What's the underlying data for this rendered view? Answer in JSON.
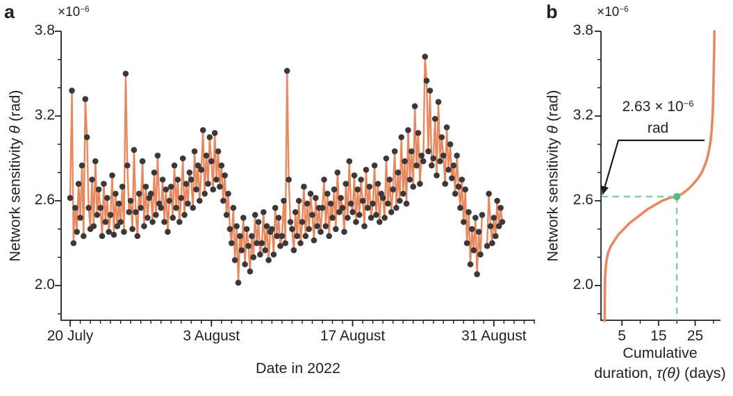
{
  "panels": {
    "a": {
      "letter": "a",
      "y_axis": {
        "label_pre": "Network sensitivity ",
        "label_math": "θ",
        "label_post": " (rad)",
        "scale_base": "×10",
        "scale_exp": "−6",
        "major_ticks": [
          "2.0",
          "2.6",
          "3.2",
          "3.8"
        ],
        "minor_ticks": [
          1.8,
          2.2,
          2.4,
          2.8,
          3.0,
          3.4,
          3.6
        ]
      },
      "x_axis": {
        "label": "Date in 2022",
        "major_ticks": [
          {
            "day": 0,
            "label": "20 July"
          },
          {
            "day": 14,
            "label": "3 August"
          },
          {
            "day": 28,
            "label": "17 August"
          },
          {
            "day": 42,
            "label": "31 August"
          }
        ],
        "minor_tick_step_days": 1,
        "minor_tick_last_day": 46
      }
    },
    "b": {
      "letter": "b",
      "y_axis": {
        "label_pre": "Network sensitivity ",
        "label_math": "θ",
        "label_post": " (rad)",
        "scale_base": "×10",
        "scale_exp": "−6",
        "major_ticks": [
          "2.0",
          "2.6",
          "3.2",
          "3.8"
        ],
        "minor_ticks": [
          1.8,
          2.2,
          2.4,
          2.8,
          3.0,
          3.4,
          3.6
        ]
      },
      "x_axis": {
        "label_line1": "Cumulative",
        "label_line2_pre": "duration, ",
        "label_line2_math": "τ(θ)",
        "label_line2_post": " (days)",
        "major_ticks": [
          {
            "x": 5,
            "label": "5"
          },
          {
            "x": 15,
            "label": "15"
          },
          {
            "x": 25,
            "label": "25"
          }
        ],
        "minor_ticks": [
          10,
          20,
          30
        ]
      },
      "annotation": {
        "value_base": "2.63 × 10",
        "value_exp": "−6",
        "unit": "rad"
      }
    }
  },
  "chart_data": [
    {
      "panel": "a",
      "type": "scatter",
      "connected": true,
      "xlabel": "Date in 2022",
      "ylabel": "Network sensitivity θ (rad)",
      "x_unit": "days since 20 July 2022",
      "y_unit": "1e-6 rad",
      "x_range": [
        -0.9,
        46.2
      ],
      "y_range": [
        1.75,
        3.8
      ],
      "x_major_tick_labels": [
        "20 July",
        "3 August",
        "17 August",
        "31 August"
      ],
      "y_major_tick_labels": [
        "2.0",
        "2.6",
        "3.2",
        "3.8"
      ],
      "points": [
        [
          0,
          2.62
        ],
        [
          0.17,
          3.38
        ],
        [
          0.33,
          2.3
        ],
        [
          0.5,
          2.55
        ],
        [
          0.67,
          2.38
        ],
        [
          0.83,
          2.72
        ],
        [
          1,
          2.48
        ],
        [
          1.17,
          2.85
        ],
        [
          1.33,
          2.35
        ],
        [
          1.5,
          3.32
        ],
        [
          1.67,
          3.05
        ],
        [
          1.83,
          2.55
        ],
        [
          2,
          2.4
        ],
        [
          2.17,
          2.75
        ],
        [
          2.33,
          2.42
        ],
        [
          2.5,
          2.88
        ],
        [
          2.67,
          2.5
        ],
        [
          2.83,
          2.68
        ],
        [
          3,
          2.55
        ],
        [
          3.17,
          2.35
        ],
        [
          3.33,
          2.72
        ],
        [
          3.5,
          2.45
        ],
        [
          3.67,
          2.62
        ],
        [
          3.83,
          2.38
        ],
        [
          4,
          2.5
        ],
        [
          4.17,
          2.78
        ],
        [
          4.33,
          2.36
        ],
        [
          4.5,
          2.65
        ],
        [
          4.67,
          2.42
        ],
        [
          4.83,
          2.58
        ],
        [
          5,
          2.45
        ],
        [
          5.17,
          2.7
        ],
        [
          5.33,
          2.38
        ],
        [
          5.5,
          3.5
        ],
        [
          5.67,
          2.85
        ],
        [
          5.83,
          2.52
        ],
        [
          6,
          2.6
        ],
        [
          6.17,
          2.4
        ],
        [
          6.33,
          2.96
        ],
        [
          6.5,
          2.52
        ],
        [
          6.67,
          2.35
        ],
        [
          6.83,
          2.65
        ],
        [
          7,
          2.55
        ],
        [
          7.17,
          2.88
        ],
        [
          7.33,
          2.42
        ],
        [
          7.5,
          2.7
        ],
        [
          7.67,
          2.48
        ],
        [
          7.83,
          2.62
        ],
        [
          8,
          2.65
        ],
        [
          8.17,
          2.45
        ],
        [
          8.33,
          2.8
        ],
        [
          8.5,
          2.5
        ],
        [
          8.67,
          2.92
        ],
        [
          8.83,
          2.58
        ],
        [
          9,
          2.55
        ],
        [
          9.17,
          2.75
        ],
        [
          9.33,
          2.45
        ],
        [
          9.5,
          2.68
        ],
        [
          9.67,
          2.38
        ],
        [
          9.83,
          2.6
        ],
        [
          10,
          2.7
        ],
        [
          10.17,
          2.48
        ],
        [
          10.33,
          2.85
        ],
        [
          10.5,
          2.55
        ],
        [
          10.67,
          2.75
        ],
        [
          10.83,
          2.45
        ],
        [
          11,
          2.62
        ],
        [
          11.17,
          2.9
        ],
        [
          11.33,
          2.5
        ],
        [
          11.5,
          2.72
        ],
        [
          11.67,
          2.58
        ],
        [
          11.83,
          2.8
        ],
        [
          12,
          2.75
        ],
        [
          12.17,
          2.55
        ],
        [
          12.33,
          2.95
        ],
        [
          12.5,
          2.68
        ],
        [
          12.67,
          2.85
        ],
        [
          12.83,
          2.6
        ],
        [
          13,
          2.82
        ],
        [
          13.17,
          3.1
        ],
        [
          13.33,
          2.65
        ],
        [
          13.5,
          2.92
        ],
        [
          13.67,
          2.72
        ],
        [
          13.83,
          3.05
        ],
        [
          14,
          2.88
        ],
        [
          14.17,
          2.68
        ],
        [
          14.33,
          3.08
        ],
        [
          14.5,
          2.75
        ],
        [
          14.67,
          2.95
        ],
        [
          14.83,
          2.7
        ],
        [
          15,
          2.85
        ],
        [
          15.17,
          2.6
        ],
        [
          15.33,
          2.78
        ],
        [
          15.5,
          2.5
        ],
        [
          15.67,
          2.65
        ],
        [
          15.83,
          2.4
        ],
        [
          16,
          2.3
        ],
        [
          16.17,
          2.55
        ],
        [
          16.33,
          2.18
        ],
        [
          16.5,
          2.42
        ],
        [
          16.67,
          2.02
        ],
        [
          16.83,
          2.35
        ],
        [
          17,
          2.25
        ],
        [
          17.17,
          2.48
        ],
        [
          17.33,
          2.15
        ],
        [
          17.5,
          2.4
        ],
        [
          17.67,
          2.28
        ],
        [
          17.83,
          2.1
        ],
        [
          18,
          2.35
        ],
        [
          18.17,
          2.2
        ],
        [
          18.33,
          2.5
        ],
        [
          18.5,
          2.3
        ],
        [
          18.67,
          2.45
        ],
        [
          18.83,
          2.22
        ],
        [
          19,
          2.3
        ],
        [
          19.17,
          2.52
        ],
        [
          19.33,
          2.25
        ],
        [
          19.5,
          2.42
        ],
        [
          19.67,
          2.18
        ],
        [
          19.83,
          2.38
        ],
        [
          20,
          2.4
        ],
        [
          20.17,
          2.22
        ],
        [
          20.33,
          2.55
        ],
        [
          20.5,
          2.35
        ],
        [
          20.67,
          2.48
        ],
        [
          20.83,
          2.28
        ],
        [
          21,
          2.35
        ],
        [
          21.17,
          2.6
        ],
        [
          21.33,
          2.3
        ],
        [
          21.5,
          3.52
        ],
        [
          21.67,
          2.75
        ],
        [
          21.83,
          2.45
        ],
        [
          22,
          2.4
        ],
        [
          22.17,
          2.25
        ],
        [
          22.33,
          2.52
        ],
        [
          22.5,
          2.35
        ],
        [
          22.67,
          2.6
        ],
        [
          22.83,
          2.3
        ],
        [
          23,
          2.45
        ],
        [
          23.17,
          2.7
        ],
        [
          23.33,
          2.35
        ],
        [
          23.5,
          2.58
        ],
        [
          23.67,
          2.4
        ],
        [
          23.83,
          2.65
        ],
        [
          24,
          2.5
        ],
        [
          24.17,
          2.32
        ],
        [
          24.33,
          2.62
        ],
        [
          24.5,
          2.42
        ],
        [
          24.67,
          2.55
        ],
        [
          24.83,
          2.38
        ],
        [
          25,
          2.55
        ],
        [
          25.17,
          2.75
        ],
        [
          25.33,
          2.42
        ],
        [
          25.5,
          2.65
        ],
        [
          25.67,
          2.35
        ],
        [
          25.83,
          2.58
        ],
        [
          26,
          2.48
        ],
        [
          26.17,
          2.68
        ],
        [
          26.33,
          2.4
        ],
        [
          26.5,
          2.8
        ],
        [
          26.67,
          2.52
        ],
        [
          26.83,
          2.62
        ],
        [
          27,
          2.55
        ],
        [
          27.17,
          2.38
        ],
        [
          27.33,
          2.72
        ],
        [
          27.5,
          2.48
        ],
        [
          27.67,
          2.88
        ],
        [
          27.83,
          2.58
        ],
        [
          28,
          2.52
        ],
        [
          28.17,
          2.78
        ],
        [
          28.33,
          2.45
        ],
        [
          28.5,
          2.68
        ],
        [
          28.67,
          2.5
        ],
        [
          28.83,
          2.75
        ],
        [
          29,
          2.6
        ],
        [
          29.17,
          2.42
        ],
        [
          29.33,
          2.82
        ],
        [
          29.5,
          2.55
        ],
        [
          29.67,
          2.7
        ],
        [
          29.83,
          2.48
        ],
        [
          30,
          2.58
        ],
        [
          30.17,
          2.85
        ],
        [
          30.33,
          2.5
        ],
        [
          30.5,
          2.72
        ],
        [
          30.67,
          2.45
        ],
        [
          30.83,
          2.65
        ],
        [
          31,
          2.62
        ],
        [
          31.17,
          2.48
        ],
        [
          31.33,
          2.9
        ],
        [
          31.5,
          2.58
        ],
        [
          31.67,
          2.75
        ],
        [
          31.83,
          2.52
        ],
        [
          32,
          2.68
        ],
        [
          32.17,
          2.95
        ],
        [
          32.33,
          2.55
        ],
        [
          32.5,
          2.8
        ],
        [
          32.67,
          2.6
        ],
        [
          32.83,
          3.05
        ],
        [
          33,
          2.65
        ],
        [
          33.17,
          2.88
        ],
        [
          33.33,
          2.58
        ],
        [
          33.5,
          3.1
        ],
        [
          33.67,
          2.75
        ],
        [
          33.83,
          2.95
        ],
        [
          34,
          2.7
        ],
        [
          34.17,
          3.27
        ],
        [
          34.33,
          2.85
        ],
        [
          34.5,
          3.08
        ],
        [
          34.67,
          2.72
        ],
        [
          34.83,
          2.92
        ],
        [
          35,
          2.88
        ],
        [
          35.17,
          3.62
        ],
        [
          35.33,
          3.45
        ],
        [
          35.5,
          2.95
        ],
        [
          35.67,
          3.38
        ],
        [
          35.83,
          2.85
        ],
        [
          36,
          2.9
        ],
        [
          36.17,
          3.18
        ],
        [
          36.33,
          2.78
        ],
        [
          36.5,
          3.3
        ],
        [
          36.67,
          2.88
        ],
        [
          36.83,
          3.05
        ],
        [
          37,
          2.92
        ],
        [
          37.17,
          2.72
        ],
        [
          37.33,
          3.12
        ],
        [
          37.5,
          2.82
        ],
        [
          37.67,
          3
        ],
        [
          37.83,
          2.76
        ],
        [
          38,
          2.85
        ],
        [
          38.17,
          2.65
        ],
        [
          38.33,
          2.92
        ],
        [
          38.5,
          2.7
        ],
        [
          38.67,
          2.55
        ],
        [
          38.83,
          2.75
        ],
        [
          39,
          2.45
        ],
        [
          39.17,
          2.68
        ],
        [
          39.33,
          2.3
        ],
        [
          39.5,
          2.52
        ],
        [
          39.67,
          2.15
        ],
        [
          39.83,
          2.4
        ],
        [
          40,
          2.25
        ],
        [
          40.17,
          2.48
        ],
        [
          40.33,
          2.08
        ],
        [
          40.5,
          2.38
        ],
        [
          40.67,
          2.22
        ],
        [
          40.83,
          2.5
        ],
        [
          41.33,
          2.28
        ],
        [
          41.5,
          2.65
        ],
        [
          41.67,
          2.42
        ],
        [
          41.83,
          2.3
        ],
        [
          42,
          2.48
        ],
        [
          42.17,
          2.35
        ],
        [
          42.33,
          2.6
        ],
        [
          42.5,
          2.42
        ],
        [
          42.67,
          2.55
        ],
        [
          42.83,
          2.45
        ]
      ]
    },
    {
      "panel": "b",
      "type": "line",
      "xlabel": "Cumulative duration, τ(θ) (days)",
      "ylabel": "Network sensitivity θ (rad)",
      "x_unit": "days",
      "y_unit": "1e-6 rad",
      "x_range": [
        -0.7,
        32
      ],
      "y_range": [
        1.75,
        3.8
      ],
      "x_major_tick_labels": [
        "5",
        "15",
        "25"
      ],
      "y_major_tick_labels": [
        "2.0",
        "2.6",
        "3.2",
        "3.8"
      ],
      "points": [
        [
          0.28,
          1.75
        ],
        [
          0.3,
          1.8
        ],
        [
          0.35,
          1.95
        ],
        [
          0.4,
          2.05
        ],
        [
          0.55,
          2.12
        ],
        [
          0.8,
          2.18
        ],
        [
          1.2,
          2.23
        ],
        [
          2,
          2.28
        ],
        [
          3,
          2.32
        ],
        [
          4,
          2.36
        ],
        [
          5.5,
          2.4
        ],
        [
          7,
          2.44
        ],
        [
          8.5,
          2.47
        ],
        [
          10,
          2.5
        ],
        [
          12,
          2.54
        ],
        [
          14,
          2.57
        ],
        [
          16,
          2.6
        ],
        [
          18,
          2.62
        ],
        [
          20,
          2.63
        ],
        [
          21.5,
          2.65
        ],
        [
          23,
          2.68
        ],
        [
          24.5,
          2.72
        ],
        [
          25.8,
          2.76
        ],
        [
          26.8,
          2.8
        ],
        [
          27.6,
          2.85
        ],
        [
          28.3,
          2.9
        ],
        [
          28.8,
          2.96
        ],
        [
          29.2,
          3.02
        ],
        [
          29.5,
          3.1
        ],
        [
          29.75,
          3.2
        ],
        [
          29.9,
          3.3
        ],
        [
          30,
          3.42
        ],
        [
          30.1,
          3.55
        ],
        [
          30.2,
          3.68
        ],
        [
          30.25,
          3.8
        ]
      ],
      "highlight_point": {
        "x": 20,
        "y": 2.63,
        "label": "2.63 × 10−6 rad"
      }
    }
  ],
  "colors": {
    "series_orange": "#e8885e",
    "dot_dark": "#3c3839",
    "accent_green": "#4cbd85",
    "dash_green": "#7ecca4",
    "axis_black": "#231f20",
    "background": "#ffffff"
  }
}
